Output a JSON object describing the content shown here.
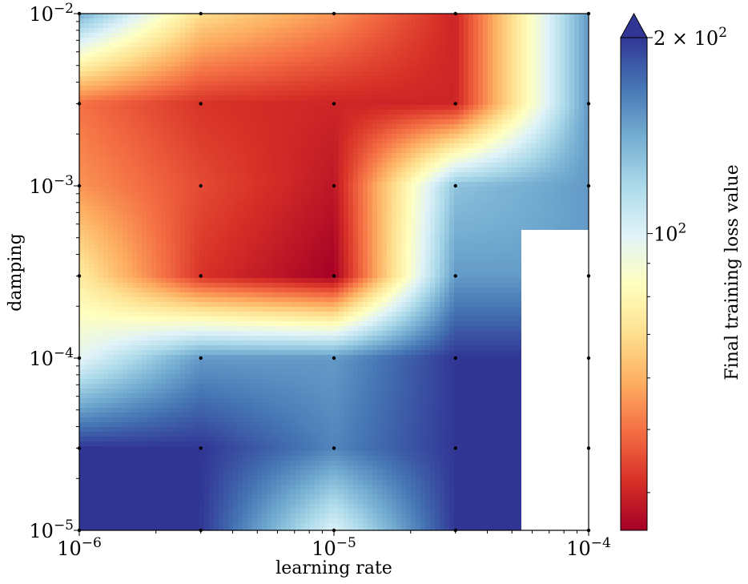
{
  "chart_data": {
    "type": "heatmap",
    "title": "",
    "xlabel": "learning rate",
    "ylabel": "damping",
    "xscale": "log",
    "yscale": "log",
    "xlim": [
      1e-06,
      0.0001
    ],
    "ylim": [
      1e-05,
      0.01
    ],
    "x_tick_labels": [
      {
        "value": 1e-06,
        "base": "10",
        "exp": "−6"
      },
      {
        "value": 1e-05,
        "base": "10",
        "exp": "−5"
      },
      {
        "value": 0.0001,
        "base": "10",
        "exp": "−4"
      }
    ],
    "y_tick_labels": [
      {
        "value": 1e-05,
        "base": "10",
        "exp": "−5"
      },
      {
        "value": 0.0001,
        "base": "10",
        "exp": "−4"
      },
      {
        "value": 0.001,
        "base": "10",
        "exp": "−3"
      },
      {
        "value": 0.01,
        "base": "10",
        "exp": "−2"
      }
    ],
    "x": [
      1e-06,
      3e-06,
      1e-05,
      3e-05,
      0.0001
    ],
    "y": [
      1e-05,
      3e-05,
      0.0001,
      0.0003,
      0.001,
      0.003,
      0.01
    ],
    "z_note_unit": "Final training loss value",
    "z": [
      [
        200,
        200,
        100,
        200,
        null
      ],
      [
        200,
        200,
        160,
        200,
        null
      ],
      [
        97,
        150,
        150,
        200,
        null
      ],
      [
        75,
        42,
        35,
        150,
        null
      ],
      [
        55,
        45,
        38,
        130,
        150
      ],
      [
        50,
        42,
        40,
        40,
        150
      ],
      [
        140,
        70,
        55,
        40,
        150
      ]
    ],
    "colorbar": {
      "label": "Final training loss value",
      "scale": "log",
      "colormap": "RdYlBu",
      "extend": "max",
      "tick_labels": [
        {
          "value": 100,
          "text": "10",
          "exp": "2",
          "prefix": ""
        },
        {
          "value": 200,
          "text": "10",
          "exp": "2",
          "prefix": "2 × "
        }
      ],
      "min": 35,
      "max": 200
    },
    "colors": {
      "stops": [
        "#a50026",
        "#d73027",
        "#f46d43",
        "#fdae61",
        "#fee090",
        "#ffffbf",
        "#e0f3f8",
        "#abd9e9",
        "#74add1",
        "#4575b4",
        "#313695"
      ],
      "over": "#313695",
      "nan": "#ffffff"
    },
    "grid": false
  }
}
